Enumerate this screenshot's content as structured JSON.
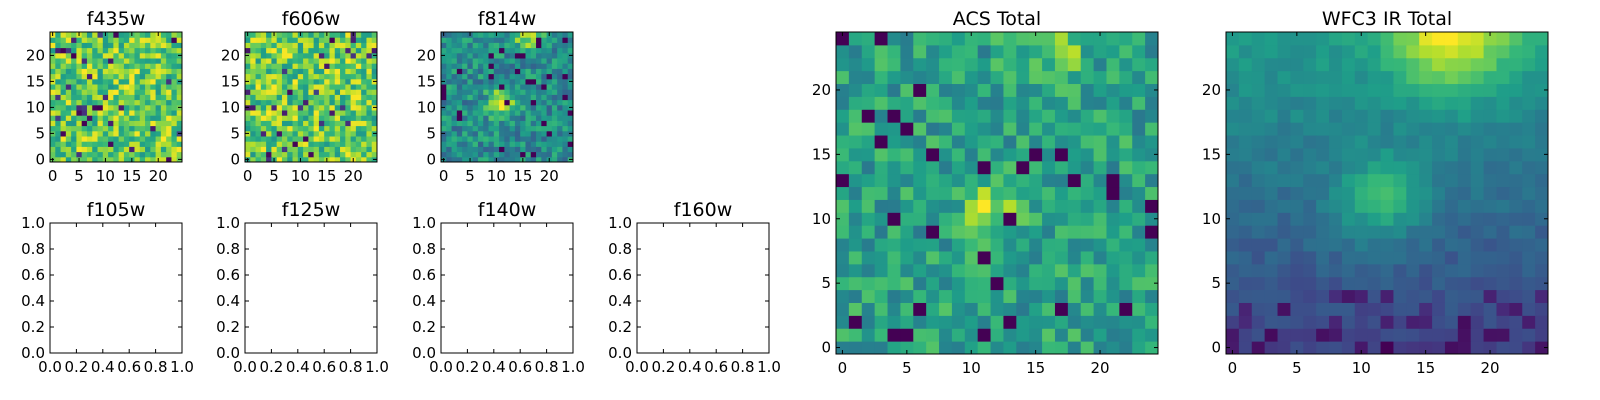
{
  "chart_data": [
    {
      "name": "f435w",
      "type": "heatmap",
      "title": "f435w",
      "extent": [
        -0.5,
        24.5
      ],
      "xticks": [
        0,
        5,
        10,
        15,
        20
      ],
      "yticks": [
        0,
        5,
        10,
        15,
        20
      ],
      "colormap": "viridis",
      "seed": 11,
      "pattern": "noise_high",
      "contrast": 1.0
    },
    {
      "name": "f606w",
      "type": "heatmap",
      "title": "f606w",
      "extent": [
        -0.5,
        24.5
      ],
      "xticks": [
        0,
        5,
        10,
        15,
        20
      ],
      "yticks": [
        0,
        5,
        10,
        15,
        20
      ],
      "colormap": "viridis",
      "seed": 23,
      "pattern": "noise_high",
      "contrast": 1.0
    },
    {
      "name": "f814w",
      "type": "heatmap",
      "title": "f814w",
      "extent": [
        -0.5,
        24.5
      ],
      "xticks": [
        0,
        5,
        10,
        15,
        20
      ],
      "yticks": [
        0,
        5,
        10,
        15,
        20
      ],
      "colormap": "viridis",
      "seed": 37,
      "pattern": "source",
      "contrast": 1.0
    },
    {
      "name": "f105w",
      "type": "empty",
      "title": "f105w",
      "xticks": [
        "0.0",
        "0.2",
        "0.4",
        "0.6",
        "0.8",
        "1.0"
      ],
      "yticks": [
        "0.0",
        "0.2",
        "0.4",
        "0.6",
        "0.8",
        "1.0"
      ]
    },
    {
      "name": "f125w",
      "type": "empty",
      "title": "f125w",
      "xticks": [
        "0.0",
        "0.2",
        "0.4",
        "0.6",
        "0.8",
        "1.0"
      ],
      "yticks": [
        "0.0",
        "0.2",
        "0.4",
        "0.6",
        "0.8",
        "1.0"
      ]
    },
    {
      "name": "f140w",
      "type": "empty",
      "title": "f140w",
      "xticks": [
        "0.0",
        "0.2",
        "0.4",
        "0.6",
        "0.8",
        "1.0"
      ],
      "yticks": [
        "0.0",
        "0.2",
        "0.4",
        "0.6",
        "0.8",
        "1.0"
      ]
    },
    {
      "name": "f160w",
      "type": "empty",
      "title": "f160w",
      "xticks": [
        "0.0",
        "0.2",
        "0.4",
        "0.6",
        "0.8",
        "1.0"
      ],
      "yticks": [
        "0.0",
        "0.2",
        "0.4",
        "0.6",
        "0.8",
        "1.0"
      ]
    },
    {
      "name": "acs-total",
      "type": "heatmap",
      "title": "ACS Total",
      "extent": [
        -0.5,
        24.5
      ],
      "xticks": [
        0,
        5,
        10,
        15,
        20
      ],
      "yticks": [
        0,
        5,
        10,
        15,
        20
      ],
      "colormap": "viridis",
      "seed": 53,
      "pattern": "acs",
      "contrast": 1.0
    },
    {
      "name": "wfc3-ir-total",
      "type": "heatmap",
      "title": "WFC3 IR Total",
      "extent": [
        -0.5,
        24.5
      ],
      "xticks": [
        0,
        5,
        10,
        15,
        20
      ],
      "yticks": [
        0,
        5,
        10,
        15,
        20
      ],
      "colormap": "viridis",
      "seed": 71,
      "pattern": "ir",
      "contrast": 1.0
    }
  ]
}
